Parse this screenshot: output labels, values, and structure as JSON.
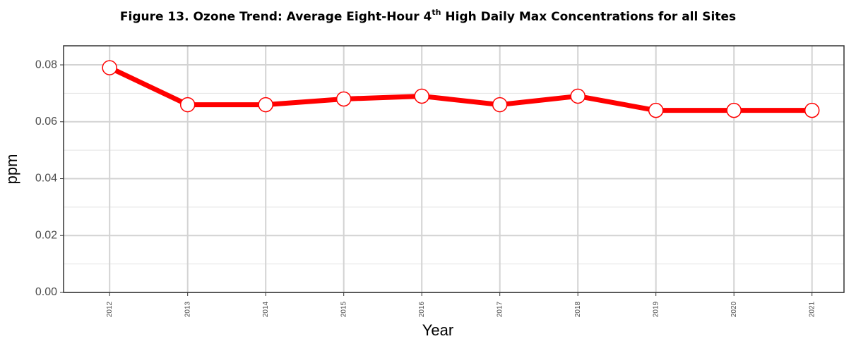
{
  "chart_data": {
    "type": "line",
    "title": [
      "Figure 13. Ozone Trend: Average Eight-Hour 4",
      "th",
      " High Daily Max Concentrations for all Sites"
    ],
    "x_label": "Year",
    "y_label": "ppm",
    "x": [
      2012,
      2013,
      2014,
      2015,
      2016,
      2017,
      2018,
      2019,
      2020,
      2021
    ],
    "series": [
      {
        "color": "#ff0000",
        "values": [
          0.079,
          0.066,
          0.066,
          0.068,
          0.069,
          0.066,
          0.069,
          0.064,
          0.064,
          0.064
        ]
      }
    ],
    "xlim": [
      2011.41,
      2021.41
    ],
    "xticks": [
      2012,
      2013,
      2014,
      2015,
      2016,
      2017,
      2018,
      2019,
      2020,
      2021
    ],
    "ylim": [
      0,
      0.0867
    ],
    "yticks": [
      {
        "value": 0,
        "label": "0.00"
      },
      0.02,
      0.04,
      0.06,
      0.08
    ],
    "yminorticks": [
      0.01,
      0.03,
      0.05,
      0.07
    ],
    "grid": true
  }
}
